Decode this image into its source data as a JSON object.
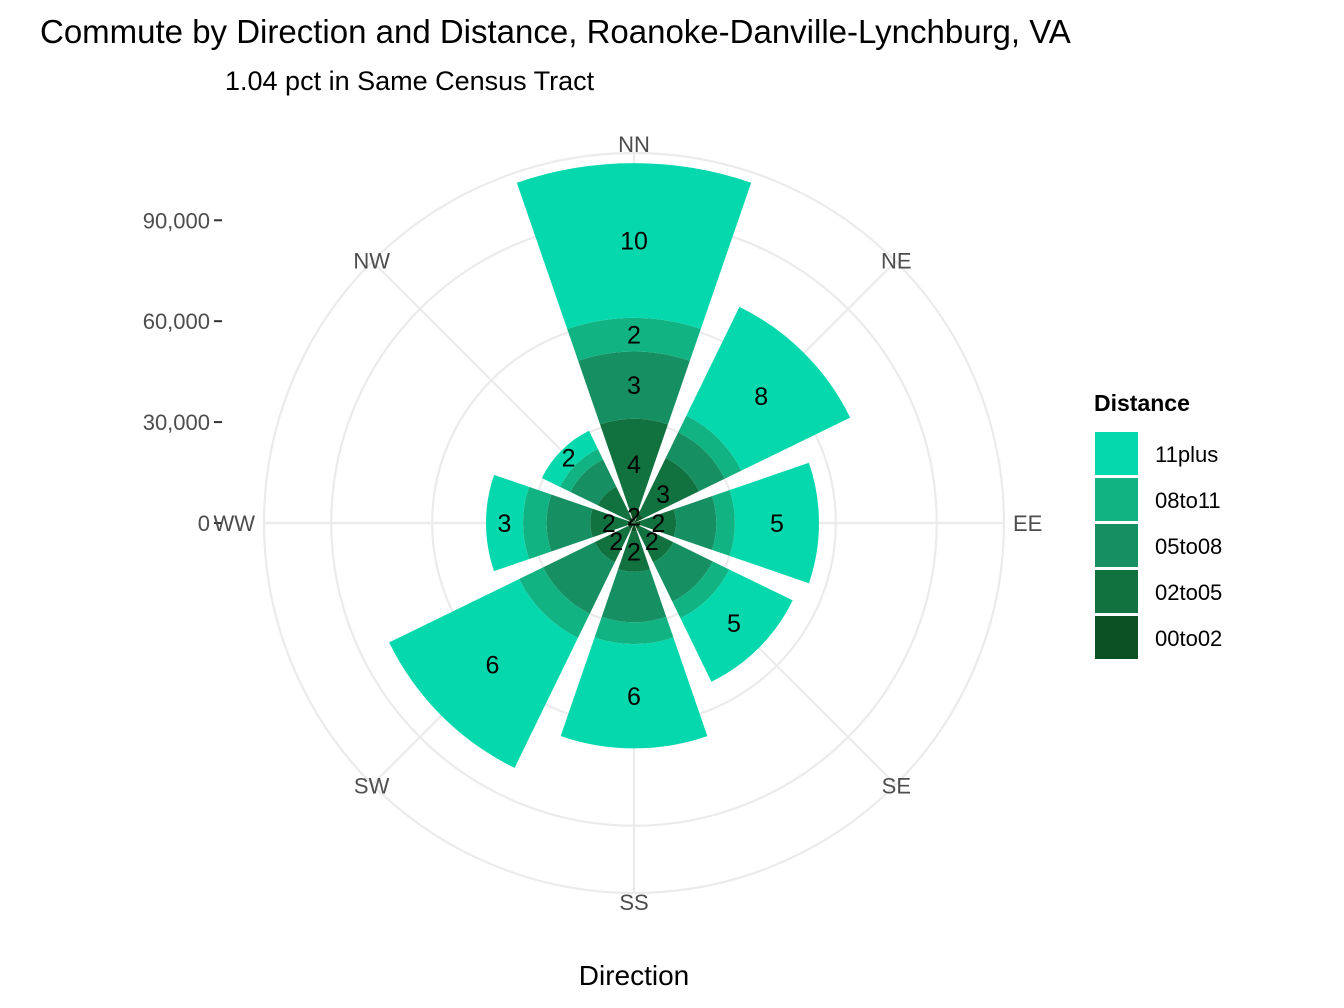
{
  "chart_data": {
    "type": "polar-stacked-bar",
    "title": "Commute by Direction and Distance, Roanoke-Danville-Lynchburg, VA",
    "subtitle": "1.04 pct in Same Census Tract",
    "xlabel": "Direction",
    "ylabel": "",
    "directions": [
      "NN",
      "NE",
      "EE",
      "SE",
      "SS",
      "SW",
      "WW",
      "NW"
    ],
    "radial_ticks": [
      {
        "value": 0,
        "label": "0"
      },
      {
        "value": 30000,
        "label": "30,000"
      },
      {
        "value": 60000,
        "label": "60,000"
      },
      {
        "value": 90000,
        "label": "90,000"
      }
    ],
    "radial_max": 110000,
    "grid": true,
    "legend": {
      "title": "Distance",
      "position": "right",
      "entries": [
        "11plus",
        "08to11",
        "05to08",
        "02to05",
        "00to02"
      ]
    },
    "colors": {
      "11plus": "#06d8ae",
      "08to11": "#12b383",
      "05to08": "#169062",
      "02to05": "#117240",
      "00to02": "#0c5124"
    },
    "series": [
      {
        "name": "00to02",
        "values": [
          4000,
          3000,
          2000,
          2000,
          2500,
          2000,
          2000,
          2000
        ],
        "labels": [
          "2",
          "",
          "",
          "",
          "",
          "",
          "",
          ""
        ]
      },
      {
        "name": "02to05",
        "values": [
          27000,
          18500,
          10500,
          11000,
          12000,
          11000,
          11000,
          10000
        ],
        "labels": [
          "4",
          "3",
          "2",
          "2",
          "2",
          "2",
          "2",
          ""
        ]
      },
      {
        "name": "05to08",
        "values": [
          20000,
          8500,
          12000,
          13000,
          15000,
          17000,
          13000,
          9000
        ],
        "labels": [
          "3",
          "",
          "",
          "",
          "",
          "",
          "",
          ""
        ]
      },
      {
        "name": "08to11",
        "values": [
          10000,
          5500,
          5500,
          5500,
          6500,
          8000,
          7000,
          3500
        ],
        "labels": [
          "2",
          "",
          "",
          "",
          "",
          "",
          "",
          ""
        ]
      },
      {
        "name": "11plus",
        "values": [
          46000,
          36000,
          25000,
          21000,
          31000,
          43000,
          11000,
          6000
        ],
        "labels": [
          "10",
          "8",
          "5",
          "5",
          "6",
          "6",
          "3",
          "2"
        ]
      }
    ]
  }
}
